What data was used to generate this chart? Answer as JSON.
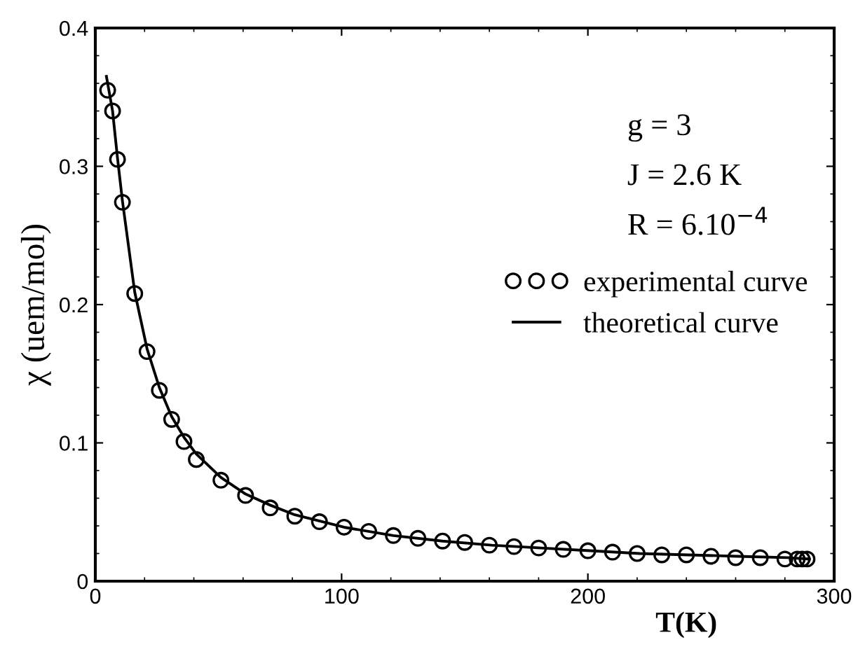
{
  "chart_data": {
    "type": "scatter",
    "xlabel": "T(K)",
    "ylabel": "χ (uem/mol)",
    "xlim": [
      0,
      300
    ],
    "xticks": [
      0,
      100,
      200,
      300
    ],
    "ylim": [
      0,
      0.4
    ],
    "yticks": [
      0,
      0.1,
      0.2,
      0.3,
      0.4
    ],
    "grid": false,
    "legend": "right",
    "annotations": [
      "g = 3",
      "J = 2.6 K",
      "R = 6.10$^{−4}$"
    ],
    "series": [
      {
        "name": "experimental curve",
        "marker": "circle",
        "color": "#000000",
        "x": [
          5,
          7,
          9,
          11,
          16,
          21,
          26,
          31,
          36,
          41,
          51,
          61,
          71,
          81,
          91,
          101,
          111,
          121,
          131,
          141,
          150,
          160,
          170,
          180,
          190,
          200,
          210,
          220,
          230,
          240,
          250,
          260,
          270,
          280,
          285,
          287,
          289
        ],
        "values": [
          0.355,
          0.34,
          0.305,
          0.274,
          0.208,
          0.166,
          0.138,
          0.117,
          0.101,
          0.088,
          0.073,
          0.062,
          0.053,
          0.047,
          0.043,
          0.039,
          0.036,
          0.033,
          0.031,
          0.029,
          0.028,
          0.026,
          0.025,
          0.024,
          0.023,
          0.022,
          0.021,
          0.02,
          0.019,
          0.019,
          0.018,
          0.017,
          0.017,
          0.016,
          0.016,
          0.016,
          0.016
        ]
      },
      {
        "name": "theoretical curve",
        "type": "line",
        "marker": "none",
        "line_style": "solid",
        "color": "#000000",
        "x": [
          4.5,
          7,
          9,
          11,
          16,
          21,
          26,
          31,
          36,
          41,
          51,
          61,
          71,
          81,
          101,
          121,
          141,
          161,
          181,
          201,
          221,
          241,
          261,
          281,
          290
        ],
        "values": [
          0.365,
          0.34,
          0.306,
          0.275,
          0.209,
          0.168,
          0.14,
          0.119,
          0.104,
          0.092,
          0.075,
          0.063,
          0.055,
          0.048,
          0.039,
          0.033,
          0.029,
          0.026,
          0.024,
          0.022,
          0.02,
          0.019,
          0.018,
          0.017,
          0.016
        ]
      }
    ]
  }
}
